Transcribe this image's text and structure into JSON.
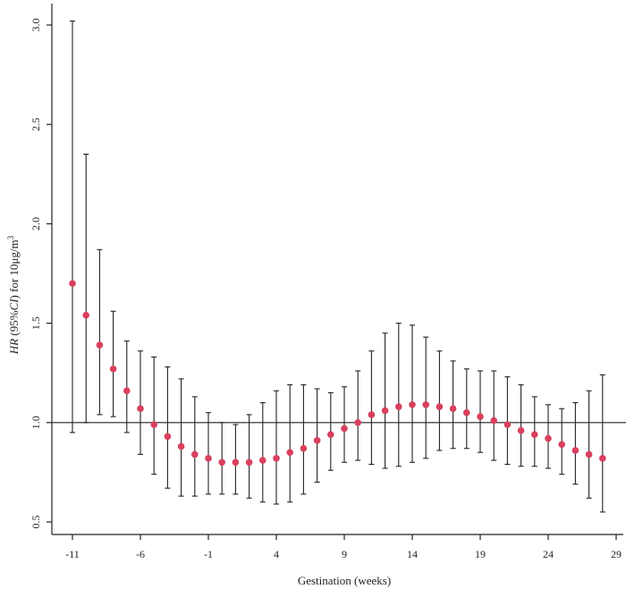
{
  "chart_data": {
    "type": "scatter",
    "title": "",
    "xlabel": "Gestination (weeks)",
    "ylabel_parts": [
      "HR",
      " (95%",
      "CI",
      ") for 10μg/m",
      "3"
    ],
    "xlim": [
      -11,
      29
    ],
    "ylim": [
      0.5,
      3.0
    ],
    "xticks": [
      -11,
      -6,
      -1,
      4,
      9,
      14,
      19,
      24,
      29
    ],
    "yticks": [
      0.5,
      1.0,
      1.5,
      2.0,
      2.5,
      3.0
    ],
    "ytick_labels": [
      "0.5",
      "1.0",
      "1.5",
      "2.0",
      "2.5",
      "3.0"
    ],
    "reference_line": 1.0,
    "grid": false,
    "colors": {
      "point": "#d9405e",
      "errorbar": "#222222"
    },
    "x": [
      -11,
      -10,
      -9,
      -8,
      -7,
      -6,
      -5,
      -4,
      -3,
      -2,
      -1,
      0,
      1,
      2,
      3,
      4,
      5,
      6,
      7,
      8,
      9,
      10,
      11,
      12,
      13,
      14,
      15,
      16,
      17,
      18,
      19,
      20,
      21,
      22,
      23,
      24,
      25,
      26,
      27,
      28
    ],
    "hr": [
      1.7,
      1.54,
      1.39,
      1.27,
      1.16,
      1.07,
      0.99,
      0.93,
      0.88,
      0.84,
      0.82,
      0.8,
      0.8,
      0.8,
      0.81,
      0.82,
      0.85,
      0.87,
      0.91,
      0.94,
      0.97,
      1.0,
      1.04,
      1.06,
      1.08,
      1.09,
      1.09,
      1.08,
      1.07,
      1.05,
      1.03,
      1.01,
      0.99,
      0.96,
      0.94,
      0.92,
      0.89,
      0.86,
      0.84,
      0.82
    ],
    "lower": [
      0.95,
      1.0,
      1.04,
      1.03,
      0.95,
      0.84,
      0.74,
      0.67,
      0.63,
      0.63,
      0.64,
      0.64,
      0.64,
      0.62,
      0.6,
      0.59,
      0.6,
      0.64,
      0.7,
      0.76,
      0.8,
      0.81,
      0.79,
      0.77,
      0.78,
      0.8,
      0.82,
      0.86,
      0.87,
      0.87,
      0.85,
      0.81,
      0.79,
      0.78,
      0.78,
      0.77,
      0.74,
      0.69,
      0.62,
      0.55
    ],
    "upper": [
      3.02,
      2.35,
      1.87,
      1.56,
      1.41,
      1.36,
      1.33,
      1.28,
      1.22,
      1.13,
      1.05,
      1.0,
      0.99,
      1.04,
      1.1,
      1.16,
      1.19,
      1.19,
      1.17,
      1.15,
      1.18,
      1.26,
      1.36,
      1.45,
      1.5,
      1.49,
      1.43,
      1.36,
      1.31,
      1.27,
      1.26,
      1.26,
      1.23,
      1.19,
      1.13,
      1.09,
      1.07,
      1.1,
      1.16,
      1.24
    ]
  }
}
